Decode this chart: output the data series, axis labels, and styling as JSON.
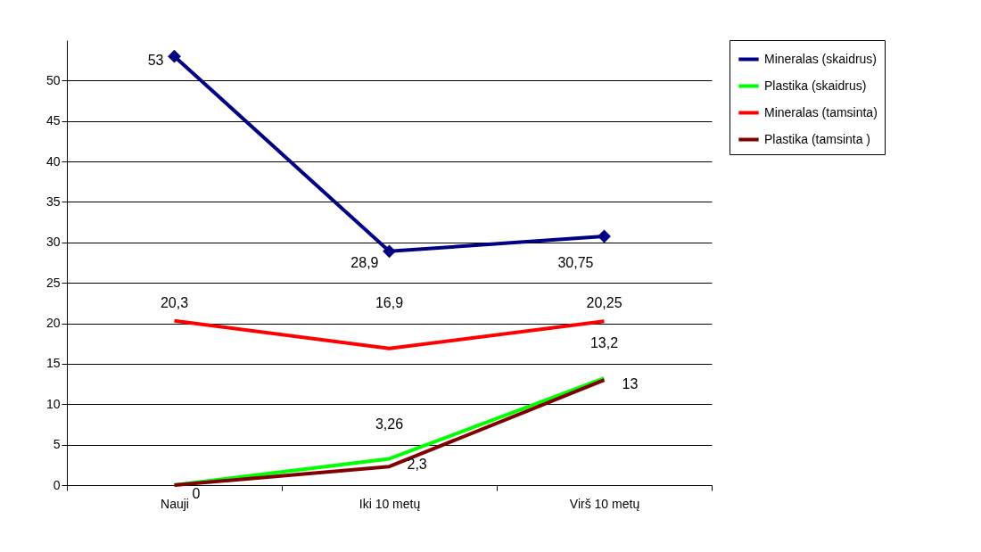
{
  "chart_data": {
    "type": "line",
    "categories": [
      "Nauji",
      "Iki 10 metų",
      "Virš 10 metų"
    ],
    "series": [
      {
        "name": "Mineralas (skaidrus)",
        "color": "#000080",
        "marker": "diamond",
        "values": [
          53,
          28.9,
          30.75
        ],
        "value_labels": [
          "53",
          "28,9",
          "30,75"
        ]
      },
      {
        "name": "Plastika (skaidrus)",
        "color": "#00ff00",
        "marker": "none",
        "values": [
          0,
          3.26,
          13.2
        ],
        "value_labels": [
          null,
          "3,26",
          "13,2"
        ]
      },
      {
        "name": "Mineralas (tamsinta)",
        "color": "#ff0000",
        "marker": "none",
        "values": [
          20.3,
          16.9,
          20.25
        ],
        "value_labels": [
          "20,3",
          "16,9",
          "20,25"
        ]
      },
      {
        "name": "Plastika (tamsinta )",
        "color": "#800000",
        "marker": "none",
        "values": [
          0,
          2.3,
          13
        ],
        "value_labels": [
          "0",
          "2,3",
          "13"
        ]
      }
    ],
    "ylim": [
      0,
      55
    ],
    "yticks": [
      0,
      5,
      10,
      15,
      20,
      25,
      30,
      35,
      40,
      45,
      50
    ],
    "grid": "y",
    "legend": "right"
  }
}
